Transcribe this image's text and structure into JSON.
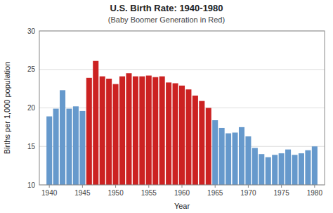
{
  "chart_data": {
    "type": "bar",
    "title": "U.S. Birth Rate: 1940-1980",
    "subtitle": "(Baby Boomer Generation in Red)",
    "xlabel": "Year",
    "ylabel": "Births per 1,000 population",
    "x": [
      1940,
      1941,
      1942,
      1943,
      1944,
      1945,
      1946,
      1947,
      1948,
      1949,
      1950,
      1951,
      1952,
      1953,
      1954,
      1955,
      1956,
      1957,
      1958,
      1959,
      1960,
      1961,
      1962,
      1963,
      1964,
      1965,
      1966,
      1967,
      1968,
      1969,
      1970,
      1971,
      1972,
      1973,
      1974,
      1975,
      1976,
      1977,
      1978,
      1979,
      1980
    ],
    "values": [
      18.9,
      19.9,
      22.3,
      19.9,
      20.2,
      19.6,
      23.9,
      26.1,
      24.1,
      23.8,
      23.1,
      24.1,
      24.5,
      24.1,
      24.1,
      24.2,
      24.0,
      24.1,
      23.3,
      23.2,
      22.9,
      22.4,
      21.6,
      20.9,
      20.0,
      18.4,
      17.4,
      16.7,
      16.8,
      17.5,
      16.3,
      14.8,
      14.0,
      13.6,
      13.9,
      14.1,
      14.6,
      13.9,
      14.1,
      14.5,
      15.0
    ],
    "colors": [
      "#6699CC",
      "#6699CC",
      "#6699CC",
      "#6699CC",
      "#6699CC",
      "#6699CC",
      "#CC2222",
      "#CC2222",
      "#CC2222",
      "#CC2222",
      "#CC2222",
      "#CC2222",
      "#CC2222",
      "#CC2222",
      "#CC2222",
      "#CC2222",
      "#CC2222",
      "#CC2222",
      "#CC2222",
      "#CC2222",
      "#CC2222",
      "#CC2222",
      "#CC2222",
      "#CC2222",
      "#CC2222",
      "#6699CC",
      "#6699CC",
      "#6699CC",
      "#6699CC",
      "#6699CC",
      "#6699CC",
      "#6699CC",
      "#6699CC",
      "#6699CC",
      "#6699CC",
      "#6699CC",
      "#6699CC",
      "#6699CC",
      "#6699CC",
      "#6699CC",
      "#6699CC"
    ],
    "xlim": [
      1938.5,
      1981.5
    ],
    "xticks": [
      1940,
      1945,
      1950,
      1955,
      1960,
      1965,
      1970,
      1975,
      1980
    ],
    "ylim": [
      10,
      30
    ],
    "yticks": [
      10,
      15,
      20,
      25,
      30
    ],
    "grid": true
  }
}
